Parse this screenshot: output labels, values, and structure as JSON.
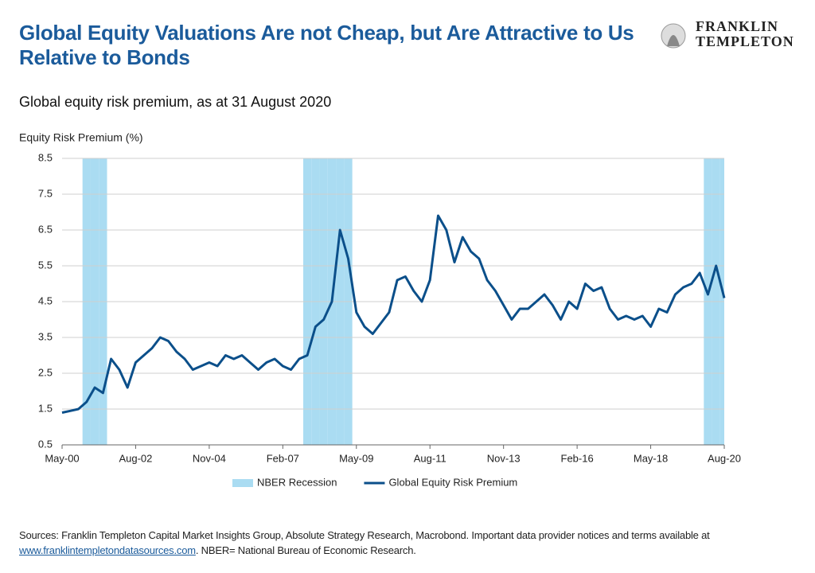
{
  "logo": {
    "line1": "FRANKLIN",
    "line2": "TEMPLETON"
  },
  "chart_data": {
    "type": "line",
    "title": "Global Equity Valuations Are not Cheap, but Are Attractive to Us Relative to Bonds",
    "subtitle": "Global equity risk premium, as at 31 August 2020",
    "y_label": "Equity Risk Premium (%)",
    "categories": [
      "May-00",
      null,
      null,
      null,
      null,
      null,
      null,
      null,
      null,
      "Aug-02",
      null,
      null,
      null,
      null,
      null,
      null,
      null,
      null,
      "Nov-04",
      null,
      null,
      null,
      null,
      null,
      null,
      null,
      null,
      "Feb-07",
      null,
      null,
      null,
      null,
      null,
      null,
      null,
      null,
      "May-09",
      null,
      null,
      null,
      null,
      null,
      null,
      null,
      null,
      "Aug-11",
      null,
      null,
      null,
      null,
      null,
      null,
      null,
      null,
      "Nov-13",
      null,
      null,
      null,
      null,
      null,
      null,
      null,
      null,
      "Feb-16",
      null,
      null,
      null,
      null,
      null,
      null,
      null,
      null,
      "May-18",
      null,
      null,
      null,
      null,
      null,
      null,
      null,
      null,
      "Aug-20"
    ],
    "series": [
      {
        "name": "NBER Recession",
        "type": "band",
        "color": "#aadcf2",
        "values": [
          null,
          null,
          null,
          8.5,
          8.5,
          8.5,
          null,
          null,
          null,
          null,
          null,
          null,
          null,
          null,
          null,
          null,
          null,
          null,
          null,
          null,
          null,
          null,
          null,
          null,
          null,
          null,
          null,
          null,
          null,
          null,
          8.5,
          8.5,
          8.5,
          8.5,
          8.5,
          8.5,
          null,
          null,
          null,
          null,
          null,
          null,
          null,
          null,
          null,
          null,
          null,
          null,
          null,
          null,
          null,
          null,
          null,
          null,
          null,
          null,
          null,
          null,
          null,
          null,
          null,
          null,
          null,
          null,
          null,
          null,
          null,
          null,
          null,
          null,
          null,
          null,
          null,
          null,
          null,
          null,
          null,
          null,
          null,
          8.5,
          8.5,
          8.5
        ]
      },
      {
        "name": "Global Equity Risk Premium",
        "type": "line",
        "color": "#0b4f8a",
        "values": [
          1.4,
          1.45,
          1.5,
          1.7,
          2.1,
          1.95,
          2.9,
          2.6,
          2.1,
          2.8,
          3.0,
          3.2,
          3.5,
          3.4,
          3.1,
          2.9,
          2.6,
          2.7,
          2.8,
          2.7,
          3.0,
          2.9,
          3.0,
          2.8,
          2.6,
          2.8,
          2.9,
          2.7,
          2.6,
          2.9,
          3.0,
          3.8,
          4.0,
          4.5,
          6.5,
          5.7,
          4.2,
          3.8,
          3.6,
          3.9,
          4.2,
          5.1,
          5.2,
          4.8,
          4.5,
          5.1,
          6.9,
          6.5,
          5.6,
          6.3,
          5.9,
          5.7,
          5.1,
          4.8,
          4.4,
          4.0,
          4.3,
          4.3,
          4.5,
          4.7,
          4.4,
          4.0,
          4.5,
          4.3,
          5.0,
          4.8,
          4.9,
          4.3,
          4.0,
          4.1,
          4.0,
          4.1,
          3.8,
          4.3,
          4.2,
          4.7,
          4.9,
          5.0,
          5.3,
          4.7,
          5.5,
          4.6
        ]
      }
    ],
    "ylim": [
      0.5,
      8.5
    ],
    "yticks": [
      0.5,
      1.5,
      2.5,
      3.5,
      4.5,
      5.5,
      6.5,
      7.5,
      8.5
    ],
    "grid": true
  },
  "footer": {
    "text": "Sources: Franklin Templeton Capital Market Insights Group, Absolute Strategy Research, Macrobond. Important data provider notices and terms available at",
    "link": "www.franklintempletondatasources.com",
    "text2": ". NBER= National Bureau of Economic Research."
  }
}
